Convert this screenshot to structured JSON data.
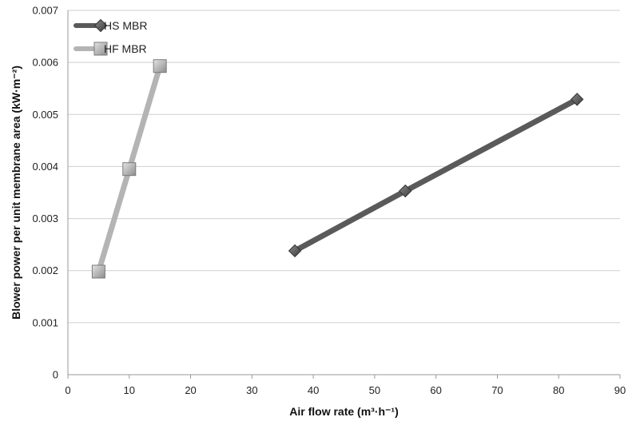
{
  "chart_data": {
    "type": "line",
    "title": "",
    "xlabel": "Air flow rate (m³·h⁻¹)",
    "ylabel": "Blower power per unit membrane area (kW·m⁻²)",
    "xlim": [
      0,
      90
    ],
    "ylim": [
      0,
      0.007
    ],
    "x_ticks": [
      0,
      10,
      20,
      30,
      40,
      50,
      60,
      70,
      80,
      90
    ],
    "y_ticks": [
      "0",
      "0.001",
      "0.002",
      "0.003",
      "0.004",
      "0.005",
      "0.006",
      "0.007"
    ],
    "grid": "horizontal",
    "legend_position": "top-left",
    "series": [
      {
        "name": "HS MBR",
        "marker": "diamond",
        "color": "#5a5a5a",
        "x": [
          37,
          55,
          83
        ],
        "y": [
          0.00238,
          0.00353,
          0.00529
        ]
      },
      {
        "name": "HF MBR",
        "marker": "square",
        "color": "#b4b4b4",
        "x": [
          5,
          10,
          15
        ],
        "y": [
          0.00198,
          0.00395,
          0.00593
        ]
      }
    ]
  }
}
